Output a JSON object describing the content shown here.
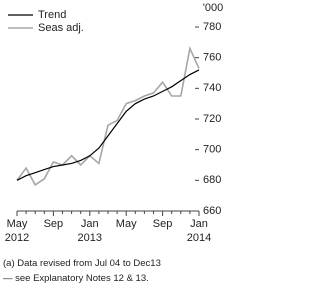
{
  "chart_data": {
    "type": "line",
    "y_unit": "'000",
    "footnote": [
      "(a) Data revised from Jul 04 to Dec13",
      "— see Explanatory Notes 12 & 13."
    ],
    "categories": [
      "May\n2012",
      null,
      null,
      null,
      "Sep",
      null,
      null,
      null,
      "Jan\n2013",
      null,
      null,
      null,
      "May",
      null,
      null,
      null,
      "Sep",
      null,
      null,
      null,
      "Jan\n2014"
    ],
    "series": [
      {
        "name": "Trend",
        "color": "#000000",
        "values": [
          680,
          683,
          685,
          687,
          689,
          690,
          691,
          693,
          696,
          701,
          709,
          717,
          725,
          730,
          733,
          735,
          738,
          741,
          745,
          749,
          752
        ]
      },
      {
        "name": "Seas adj.",
        "color": "#a6a6a6",
        "values": [
          680,
          688,
          677,
          681,
          692,
          690,
          696,
          690,
          696,
          691,
          716,
          719,
          730,
          732,
          735,
          737,
          744,
          735,
          735,
          766,
          753
        ]
      }
    ],
    "ylim": [
      660,
      780
    ],
    "yticks": [
      660,
      680,
      700,
      720,
      740,
      760,
      780
    ]
  }
}
